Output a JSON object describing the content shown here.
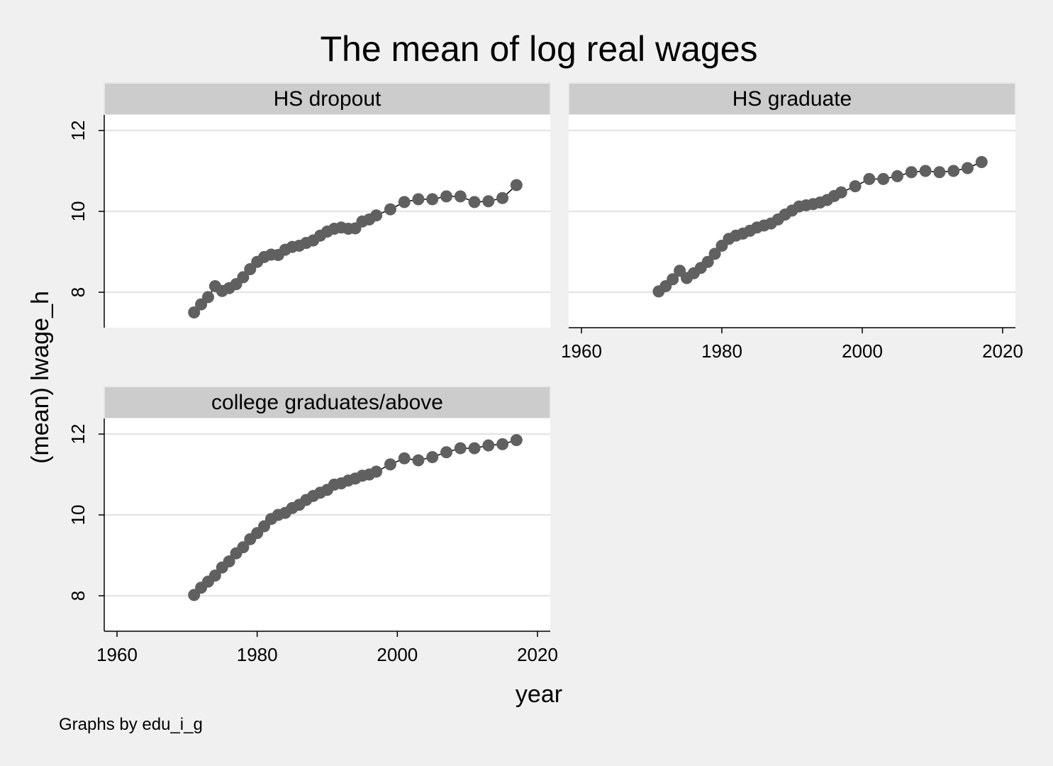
{
  "chart_data": {
    "type": "scatter",
    "title": "The mean of log real wages",
    "xlabel": "year",
    "ylabel": "(mean) lwage_h",
    "note": "Graphs by edu_i_g",
    "xlim": [
      1958,
      2022
    ],
    "ylim": [
      7.2,
      12.3
    ],
    "xticks": [
      1960,
      1980,
      2000,
      2020
    ],
    "yticks": [
      8,
      10,
      12
    ],
    "grid": true,
    "connected": true,
    "colors": {
      "marker": "#606060",
      "line": "#000000",
      "strip": "#cccccc",
      "plot_bg": "#ffffff",
      "grid": "#e6e6e6",
      "background": "#f0f0f0"
    },
    "panels": [
      {
        "name": "HS dropout",
        "x": [
          1971,
          1972,
          1973,
          1974,
          1975,
          1976,
          1977,
          1978,
          1979,
          1980,
          1981,
          1982,
          1983,
          1984,
          1985,
          1986,
          1987,
          1988,
          1989,
          1990,
          1991,
          1992,
          1993,
          1994,
          1995,
          1996,
          1997,
          1999,
          2001,
          2003,
          2005,
          2007,
          2009,
          2011,
          2013,
          2015,
          2017
        ],
        "y": [
          7.5,
          7.7,
          7.88,
          8.15,
          8.03,
          8.1,
          8.2,
          8.37,
          8.57,
          8.75,
          8.87,
          8.93,
          8.92,
          9.05,
          9.12,
          9.15,
          9.22,
          9.28,
          9.4,
          9.5,
          9.57,
          9.6,
          9.57,
          9.58,
          9.75,
          9.8,
          9.9,
          10.05,
          10.23,
          10.3,
          10.3,
          10.37,
          10.37,
          10.23,
          10.25,
          10.33,
          10.65
        ]
      },
      {
        "name": "HS graduate",
        "x": [
          1971,
          1972,
          1973,
          1974,
          1975,
          1976,
          1977,
          1978,
          1979,
          1980,
          1981,
          1982,
          1983,
          1984,
          1985,
          1986,
          1987,
          1988,
          1989,
          1990,
          1991,
          1992,
          1993,
          1994,
          1995,
          1996,
          1997,
          1999,
          2001,
          2003,
          2005,
          2007,
          2009,
          2011,
          2013,
          2015,
          2017
        ],
        "y": [
          8.02,
          8.15,
          8.32,
          8.53,
          8.35,
          8.47,
          8.6,
          8.75,
          8.95,
          9.15,
          9.32,
          9.4,
          9.45,
          9.52,
          9.6,
          9.65,
          9.7,
          9.8,
          9.92,
          10.02,
          10.12,
          10.15,
          10.18,
          10.22,
          10.28,
          10.38,
          10.47,
          10.62,
          10.8,
          10.8,
          10.87,
          10.97,
          11.0,
          10.97,
          11.0,
          11.07,
          11.22
        ]
      },
      {
        "name": "college graduates/above",
        "x": [
          1971,
          1972,
          1973,
          1974,
          1975,
          1976,
          1977,
          1978,
          1979,
          1980,
          1981,
          1982,
          1983,
          1984,
          1985,
          1986,
          1987,
          1988,
          1989,
          1990,
          1991,
          1992,
          1993,
          1994,
          1995,
          1996,
          1997,
          1999,
          2001,
          2003,
          2005,
          2007,
          2009,
          2011,
          2013,
          2015,
          2017
        ],
        "y": [
          8.02,
          8.2,
          8.35,
          8.5,
          8.7,
          8.85,
          9.05,
          9.2,
          9.4,
          9.55,
          9.72,
          9.9,
          10.0,
          10.05,
          10.17,
          10.25,
          10.37,
          10.47,
          10.55,
          10.62,
          10.75,
          10.78,
          10.85,
          10.9,
          10.97,
          11.0,
          11.07,
          11.25,
          11.4,
          11.35,
          11.43,
          11.55,
          11.65,
          11.65,
          11.72,
          11.75,
          11.85
        ]
      }
    ]
  }
}
